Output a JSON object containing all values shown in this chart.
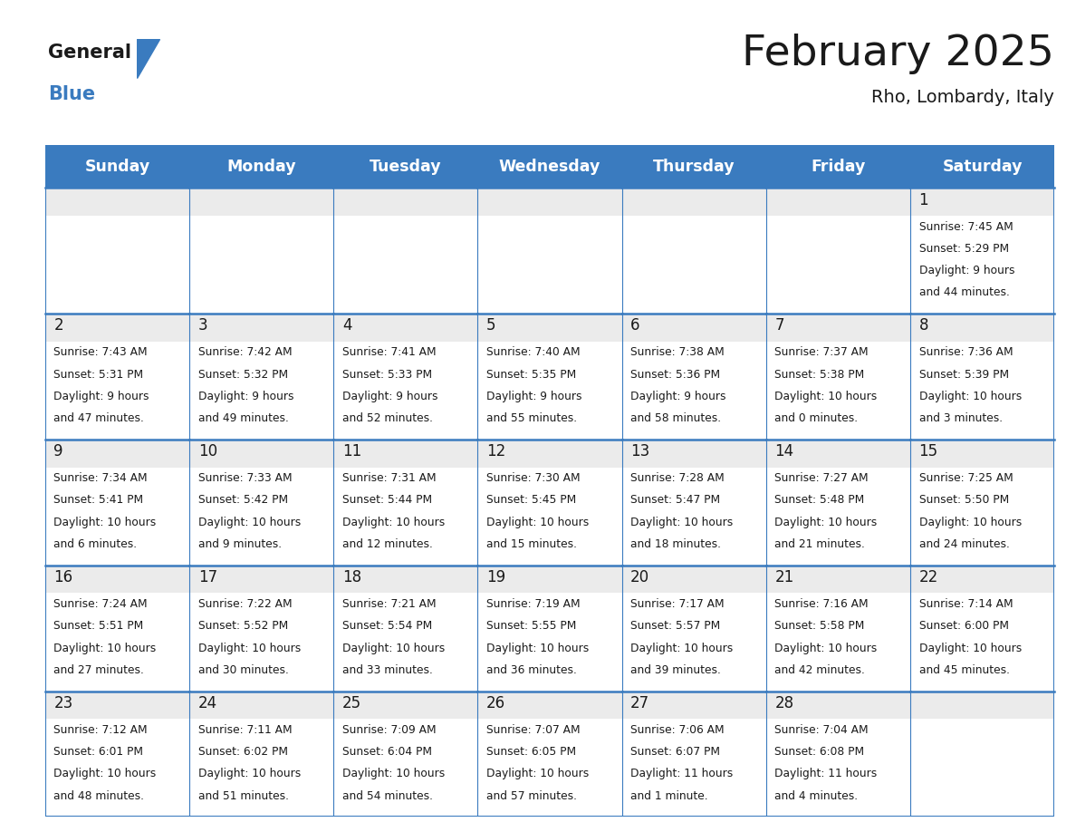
{
  "title": "February 2025",
  "subtitle": "Rho, Lombardy, Italy",
  "days_of_week": [
    "Sunday",
    "Monday",
    "Tuesday",
    "Wednesday",
    "Thursday",
    "Friday",
    "Saturday"
  ],
  "header_bg": "#3a7bbf",
  "header_text_color": "#ffffff",
  "border_color": "#3a7bbf",
  "cell_day_bg": "#ebebeb",
  "cell_content_bg": "#ffffff",
  "day_number_color": "#1a1a1a",
  "text_color": "#1a1a1a",
  "calendar_data": [
    [
      null,
      null,
      null,
      null,
      null,
      null,
      {
        "day": "1",
        "sunrise": "7:45 AM",
        "sunset": "5:29 PM",
        "daylight_line1": "Daylight: 9 hours",
        "daylight_line2": "and 44 minutes."
      }
    ],
    [
      {
        "day": "2",
        "sunrise": "7:43 AM",
        "sunset": "5:31 PM",
        "daylight_line1": "Daylight: 9 hours",
        "daylight_line2": "and 47 minutes."
      },
      {
        "day": "3",
        "sunrise": "7:42 AM",
        "sunset": "5:32 PM",
        "daylight_line1": "Daylight: 9 hours",
        "daylight_line2": "and 49 minutes."
      },
      {
        "day": "4",
        "sunrise": "7:41 AM",
        "sunset": "5:33 PM",
        "daylight_line1": "Daylight: 9 hours",
        "daylight_line2": "and 52 minutes."
      },
      {
        "day": "5",
        "sunrise": "7:40 AM",
        "sunset": "5:35 PM",
        "daylight_line1": "Daylight: 9 hours",
        "daylight_line2": "and 55 minutes."
      },
      {
        "day": "6",
        "sunrise": "7:38 AM",
        "sunset": "5:36 PM",
        "daylight_line1": "Daylight: 9 hours",
        "daylight_line2": "and 58 minutes."
      },
      {
        "day": "7",
        "sunrise": "7:37 AM",
        "sunset": "5:38 PM",
        "daylight_line1": "Daylight: 10 hours",
        "daylight_line2": "and 0 minutes."
      },
      {
        "day": "8",
        "sunrise": "7:36 AM",
        "sunset": "5:39 PM",
        "daylight_line1": "Daylight: 10 hours",
        "daylight_line2": "and 3 minutes."
      }
    ],
    [
      {
        "day": "9",
        "sunrise": "7:34 AM",
        "sunset": "5:41 PM",
        "daylight_line1": "Daylight: 10 hours",
        "daylight_line2": "and 6 minutes."
      },
      {
        "day": "10",
        "sunrise": "7:33 AM",
        "sunset": "5:42 PM",
        "daylight_line1": "Daylight: 10 hours",
        "daylight_line2": "and 9 minutes."
      },
      {
        "day": "11",
        "sunrise": "7:31 AM",
        "sunset": "5:44 PM",
        "daylight_line1": "Daylight: 10 hours",
        "daylight_line2": "and 12 minutes."
      },
      {
        "day": "12",
        "sunrise": "7:30 AM",
        "sunset": "5:45 PM",
        "daylight_line1": "Daylight: 10 hours",
        "daylight_line2": "and 15 minutes."
      },
      {
        "day": "13",
        "sunrise": "7:28 AM",
        "sunset": "5:47 PM",
        "daylight_line1": "Daylight: 10 hours",
        "daylight_line2": "and 18 minutes."
      },
      {
        "day": "14",
        "sunrise": "7:27 AM",
        "sunset": "5:48 PM",
        "daylight_line1": "Daylight: 10 hours",
        "daylight_line2": "and 21 minutes."
      },
      {
        "day": "15",
        "sunrise": "7:25 AM",
        "sunset": "5:50 PM",
        "daylight_line1": "Daylight: 10 hours",
        "daylight_line2": "and 24 minutes."
      }
    ],
    [
      {
        "day": "16",
        "sunrise": "7:24 AM",
        "sunset": "5:51 PM",
        "daylight_line1": "Daylight: 10 hours",
        "daylight_line2": "and 27 minutes."
      },
      {
        "day": "17",
        "sunrise": "7:22 AM",
        "sunset": "5:52 PM",
        "daylight_line1": "Daylight: 10 hours",
        "daylight_line2": "and 30 minutes."
      },
      {
        "day": "18",
        "sunrise": "7:21 AM",
        "sunset": "5:54 PM",
        "daylight_line1": "Daylight: 10 hours",
        "daylight_line2": "and 33 minutes."
      },
      {
        "day": "19",
        "sunrise": "7:19 AM",
        "sunset": "5:55 PM",
        "daylight_line1": "Daylight: 10 hours",
        "daylight_line2": "and 36 minutes."
      },
      {
        "day": "20",
        "sunrise": "7:17 AM",
        "sunset": "5:57 PM",
        "daylight_line1": "Daylight: 10 hours",
        "daylight_line2": "and 39 minutes."
      },
      {
        "day": "21",
        "sunrise": "7:16 AM",
        "sunset": "5:58 PM",
        "daylight_line1": "Daylight: 10 hours",
        "daylight_line2": "and 42 minutes."
      },
      {
        "day": "22",
        "sunrise": "7:14 AM",
        "sunset": "6:00 PM",
        "daylight_line1": "Daylight: 10 hours",
        "daylight_line2": "and 45 minutes."
      }
    ],
    [
      {
        "day": "23",
        "sunrise": "7:12 AM",
        "sunset": "6:01 PM",
        "daylight_line1": "Daylight: 10 hours",
        "daylight_line2": "and 48 minutes."
      },
      {
        "day": "24",
        "sunrise": "7:11 AM",
        "sunset": "6:02 PM",
        "daylight_line1": "Daylight: 10 hours",
        "daylight_line2": "and 51 minutes."
      },
      {
        "day": "25",
        "sunrise": "7:09 AM",
        "sunset": "6:04 PM",
        "daylight_line1": "Daylight: 10 hours",
        "daylight_line2": "and 54 minutes."
      },
      {
        "day": "26",
        "sunrise": "7:07 AM",
        "sunset": "6:05 PM",
        "daylight_line1": "Daylight: 10 hours",
        "daylight_line2": "and 57 minutes."
      },
      {
        "day": "27",
        "sunrise": "7:06 AM",
        "sunset": "6:07 PM",
        "daylight_line1": "Daylight: 11 hours",
        "daylight_line2": "and 1 minute."
      },
      {
        "day": "28",
        "sunrise": "7:04 AM",
        "sunset": "6:08 PM",
        "daylight_line1": "Daylight: 11 hours",
        "daylight_line2": "and 4 minutes."
      },
      null
    ]
  ],
  "figsize": [
    11.88,
    9.18
  ],
  "dpi": 100
}
